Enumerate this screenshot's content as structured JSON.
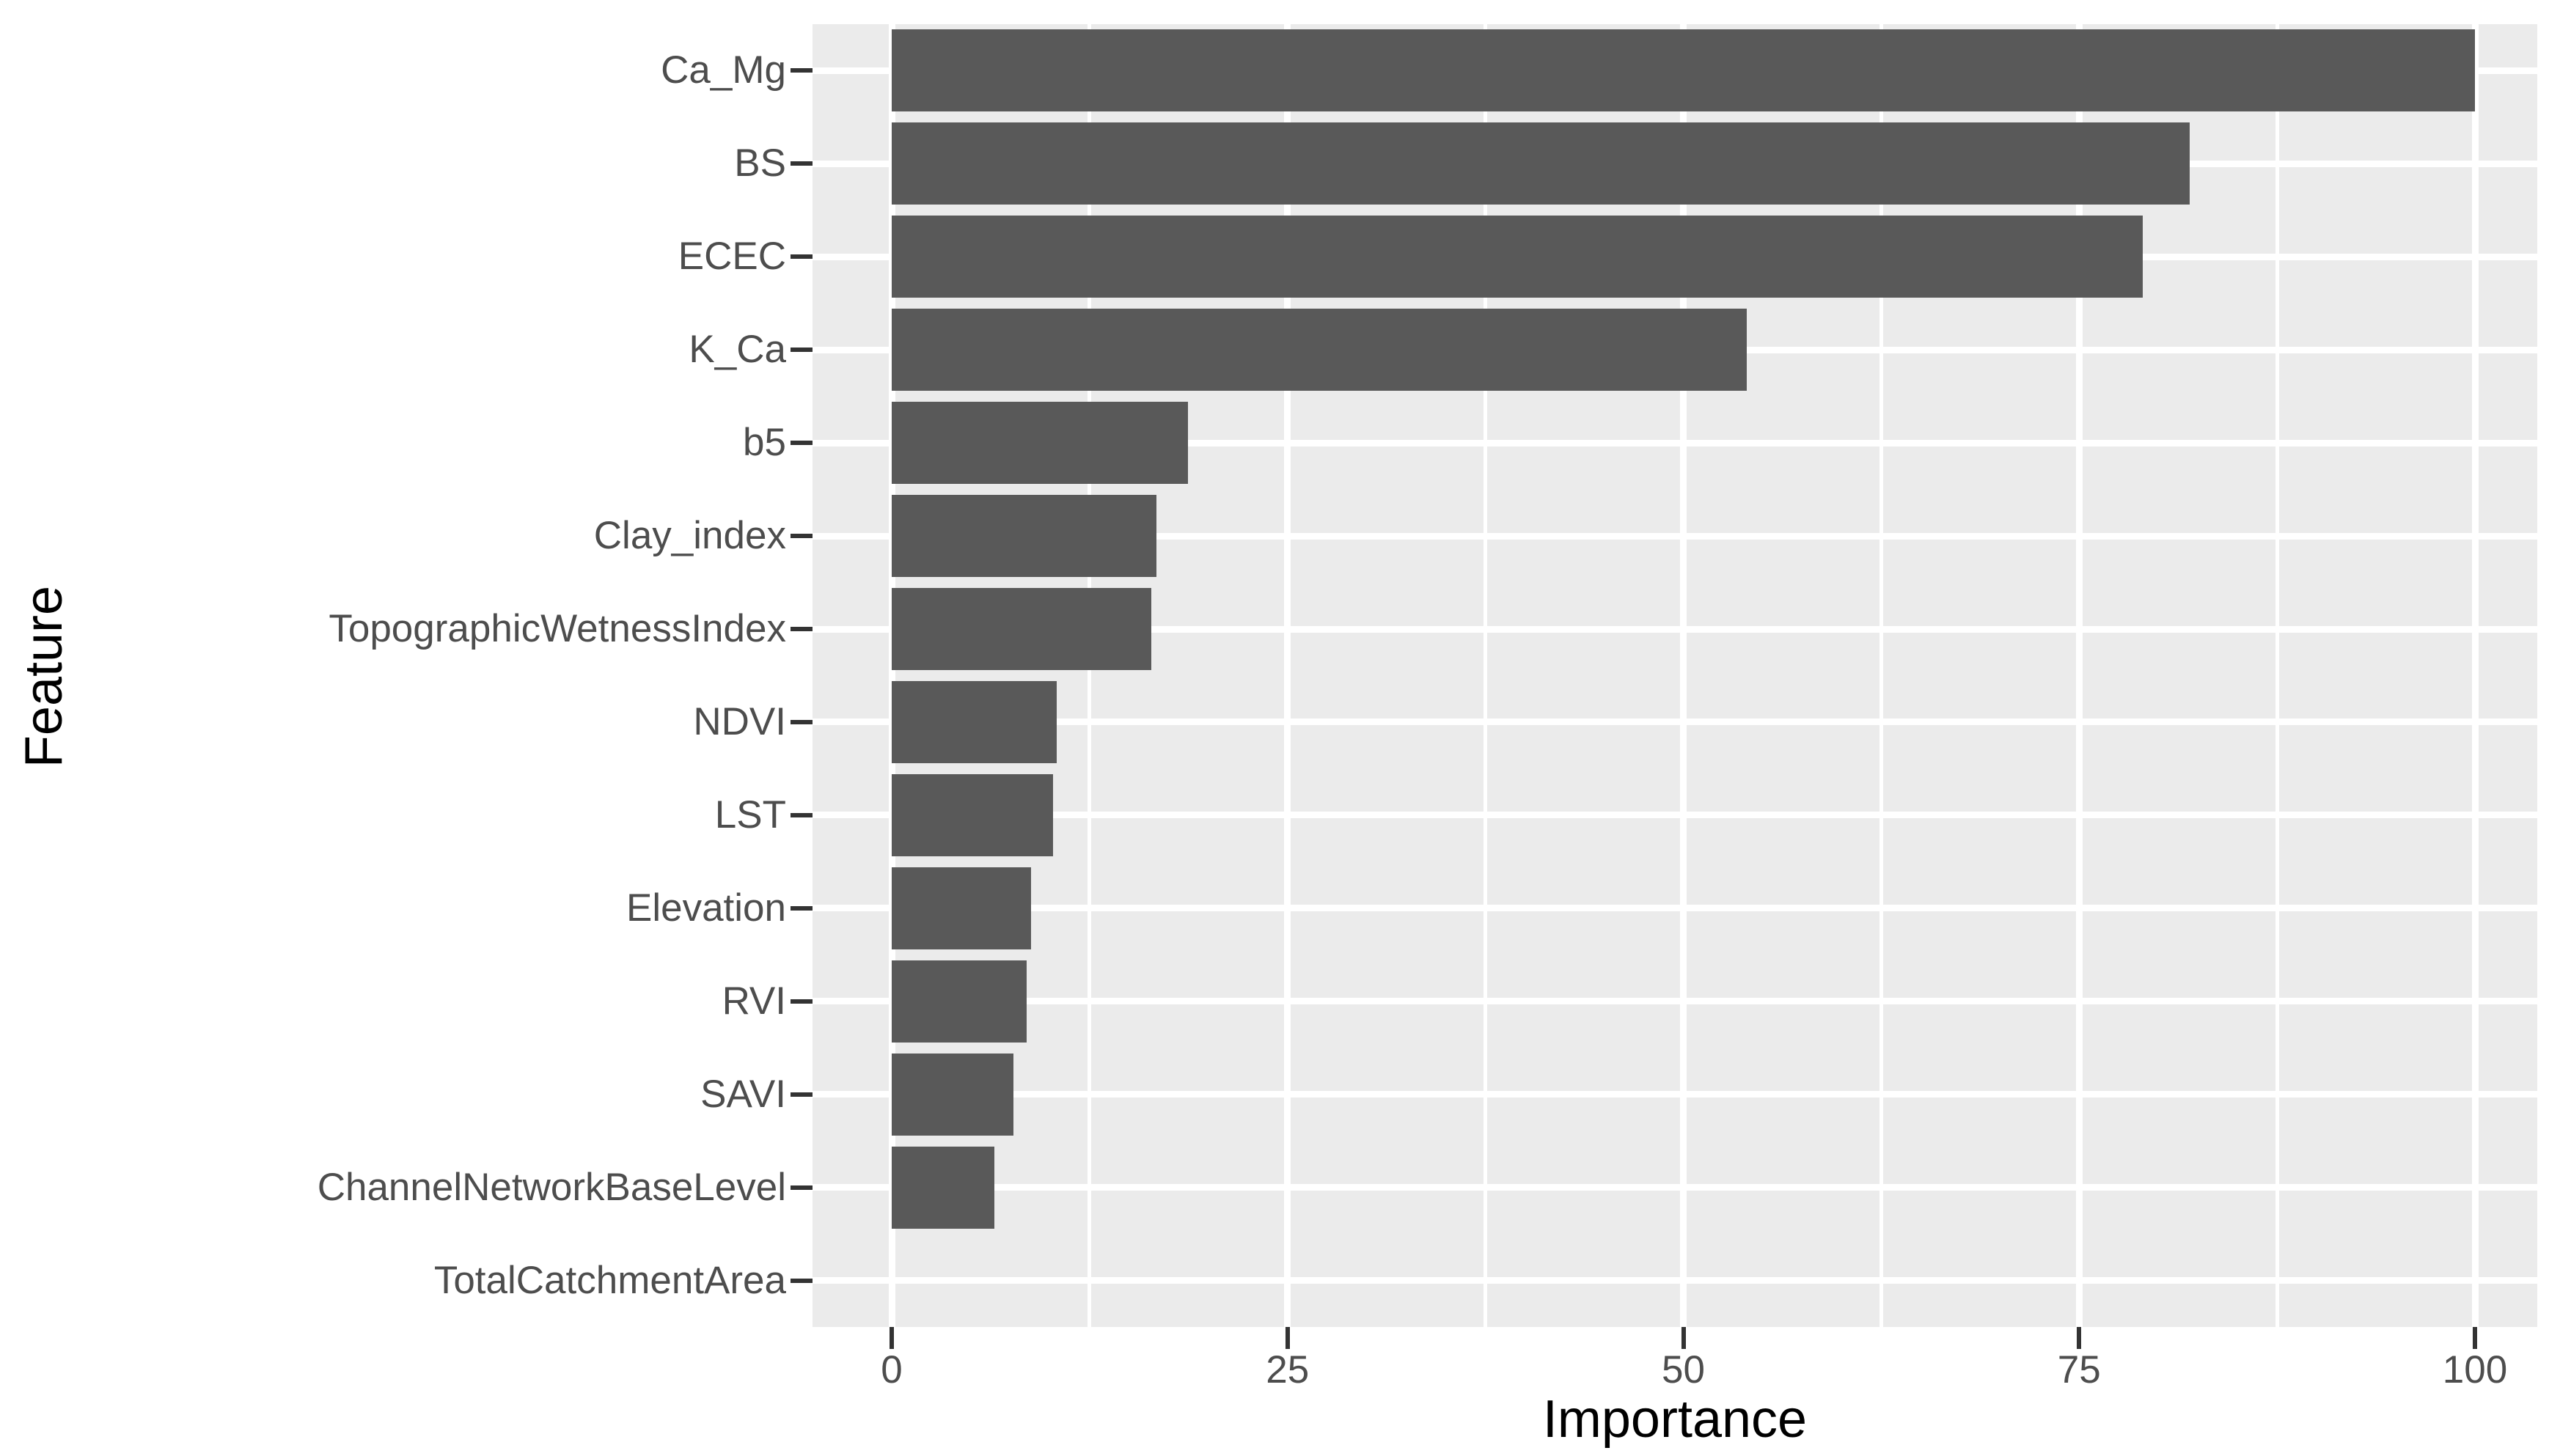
{
  "chart_data": {
    "type": "bar",
    "orientation": "horizontal",
    "title": "",
    "xlabel": "Importance",
    "ylabel": "Feature",
    "categories": [
      "Ca_Mg",
      "BS",
      "ECEC",
      "K_Ca",
      "b5",
      "Clay_index",
      "TopographicWetnessIndex",
      "NDVI",
      "LST",
      "Elevation",
      "RVI",
      "SAVI",
      "ChannelNetworkBaseLevel",
      "TotalCatchmentArea"
    ],
    "values": [
      100,
      82,
      79,
      54,
      18.7,
      16.7,
      16.4,
      10.4,
      10.2,
      8.8,
      8.5,
      7.7,
      6.5,
      0
    ],
    "xlim": [
      0,
      100
    ],
    "x_ticks": [
      0,
      25,
      50,
      75,
      100
    ],
    "x_tick_labels": [
      "0",
      "25",
      "50",
      "75",
      "100"
    ],
    "x_minor_ticks": [
      12.5,
      37.5,
      62.5,
      87.5
    ],
    "grid": true,
    "legend": false,
    "style": {
      "bar_color": "#595959",
      "panel_bg": "#EBEBEB",
      "grid_color": "#FFFFFF",
      "tick_mark_color": "#333333",
      "axis_text_color": "#4D4D4D",
      "axis_title_color": "#000000",
      "figure_bg": "#FFFFFF"
    }
  }
}
